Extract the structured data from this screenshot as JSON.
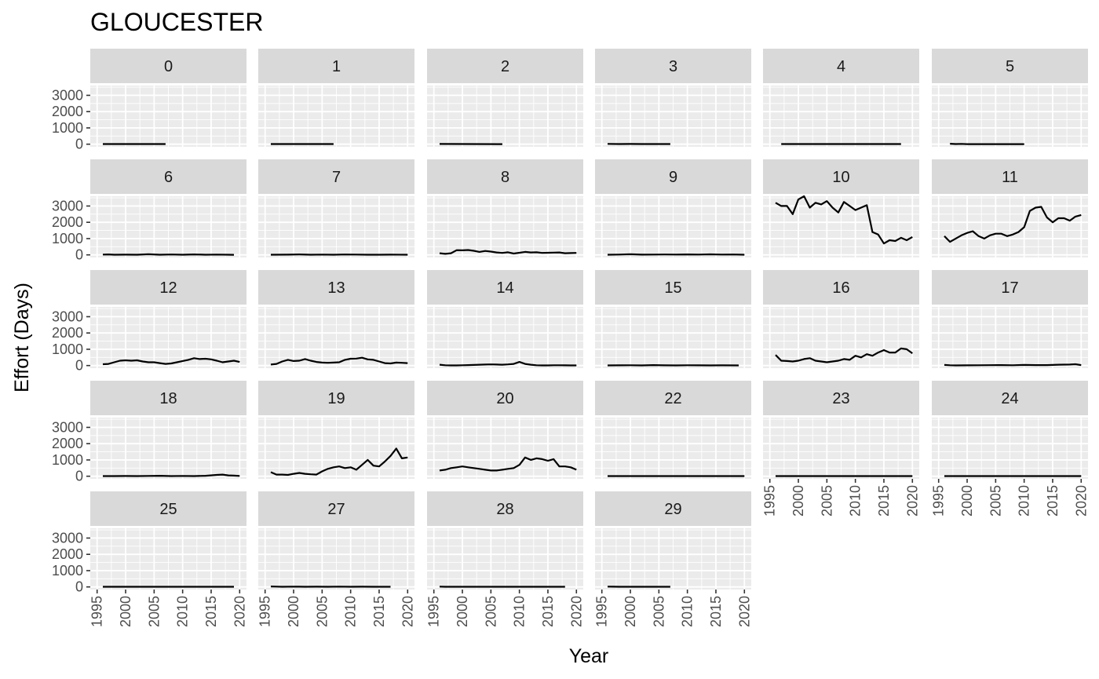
{
  "chart": {
    "title": "GLOUCESTER",
    "xlabel": "Year",
    "ylabel": "Effort (Days)"
  },
  "chart_data": {
    "type": "line",
    "title": "GLOUCESTER",
    "xlabel": "Year",
    "ylabel": "Effort (Days)",
    "facet_layout": "facet_wrap, 6 columns, free-x axis shown on bottom panel of each column",
    "xlim": [
      1995,
      2020
    ],
    "ylim": [
      0,
      3000
    ],
    "x_ticks": [
      1995,
      2000,
      2005,
      2010,
      2015,
      2020
    ],
    "y_ticks": [
      0,
      1000,
      2000,
      3000
    ],
    "grid": true,
    "panel_background": "#EBEBEB",
    "strip_background": "#D9D9D9",
    "line_color": "#000000",
    "facets": [
      {
        "label": "0",
        "x": [
          1996,
          2007
        ],
        "y": [
          10,
          10
        ]
      },
      {
        "label": "1",
        "x": [
          1996,
          2007
        ],
        "y": [
          10,
          10
        ]
      },
      {
        "label": "2",
        "x": [
          1996,
          2007
        ],
        "y": [
          15,
          5
        ]
      },
      {
        "label": "3",
        "x": [
          1996,
          1998,
          2000,
          2002,
          2004,
          2007
        ],
        "y": [
          20,
          10,
          15,
          10,
          10,
          10
        ]
      },
      {
        "label": "4",
        "x": [
          1997,
          2018
        ],
        "y": [
          10,
          10
        ]
      },
      {
        "label": "5",
        "x": [
          1997,
          1998,
          1999,
          2000,
          2010
        ],
        "y": [
          30,
          10,
          20,
          5,
          5
        ]
      },
      {
        "label": "6",
        "x": [
          1996,
          1997,
          1998,
          2000,
          2002,
          2004,
          2006,
          2008,
          2010,
          2012,
          2014,
          2016,
          2018,
          2019
        ],
        "y": [
          20,
          30,
          10,
          15,
          10,
          40,
          10,
          25,
          10,
          30,
          10,
          20,
          10,
          5
        ]
      },
      {
        "label": "7",
        "x": [
          1996,
          1999,
          2001,
          2003,
          2005,
          2007,
          2009,
          2011,
          2013,
          2015,
          2017,
          2020
        ],
        "y": [
          10,
          15,
          30,
          10,
          20,
          10,
          25,
          20,
          10,
          10,
          15,
          10
        ]
      },
      {
        "label": "8",
        "x": [
          1996,
          1997,
          1998,
          1999,
          2000,
          2001,
          2002,
          2003,
          2004,
          2005,
          2006,
          2007,
          2008,
          2009,
          2010,
          2011,
          2012,
          2013,
          2014,
          2015,
          2016,
          2017,
          2018,
          2019,
          2020
        ],
        "y": [
          100,
          60,
          100,
          290,
          280,
          300,
          250,
          180,
          240,
          200,
          150,
          120,
          160,
          80,
          130,
          180,
          150,
          160,
          120,
          130,
          140,
          150,
          100,
          110,
          120
        ]
      },
      {
        "label": "9",
        "x": [
          1996,
          1998,
          2000,
          2002,
          2004,
          2006,
          2008,
          2010,
          2012,
          2014,
          2016,
          2018,
          2020
        ],
        "y": [
          10,
          20,
          40,
          15,
          20,
          25,
          20,
          30,
          20,
          35,
          20,
          25,
          10
        ]
      },
      {
        "label": "10",
        "x": [
          1996,
          1997,
          1998,
          1999,
          2000,
          2001,
          2002,
          2003,
          2004,
          2005,
          2006,
          2007,
          2008,
          2009,
          2010,
          2011,
          2012,
          2013,
          2014,
          2015,
          2016,
          2017,
          2018,
          2019,
          2020
        ],
        "y": [
          3200,
          3000,
          3000,
          2500,
          3400,
          3600,
          2900,
          3200,
          3100,
          3300,
          2900,
          2600,
          3250,
          3000,
          2750,
          2900,
          3050,
          1400,
          1250,
          700,
          900,
          850,
          1050,
          900,
          1100
        ]
      },
      {
        "label": "11",
        "x": [
          1996,
          1997,
          1998,
          1999,
          2000,
          2001,
          2002,
          2003,
          2004,
          2005,
          2006,
          2007,
          2008,
          2009,
          2010,
          2011,
          2012,
          2013,
          2014,
          2015,
          2016,
          2017,
          2018,
          2019,
          2020
        ],
        "y": [
          1150,
          800,
          1000,
          1200,
          1350,
          1450,
          1150,
          1000,
          1200,
          1300,
          1300,
          1150,
          1250,
          1400,
          1700,
          2700,
          2900,
          2950,
          2300,
          2000,
          2250,
          2250,
          2100,
          2350,
          2450
        ]
      },
      {
        "label": "12",
        "x": [
          1996,
          1997,
          1998,
          1999,
          2000,
          2001,
          2002,
          2003,
          2004,
          2005,
          2006,
          2007,
          2008,
          2009,
          2010,
          2011,
          2012,
          2013,
          2014,
          2015,
          2016,
          2017,
          2018,
          2019,
          2020
        ],
        "y": [
          80,
          100,
          200,
          300,
          320,
          300,
          320,
          250,
          200,
          200,
          150,
          100,
          130,
          200,
          280,
          350,
          450,
          400,
          420,
          380,
          300,
          200,
          250,
          300,
          220
        ]
      },
      {
        "label": "13",
        "x": [
          1996,
          1997,
          1998,
          1999,
          2000,
          2001,
          2002,
          2003,
          2004,
          2005,
          2006,
          2007,
          2008,
          2009,
          2010,
          2011,
          2012,
          2013,
          2014,
          2015,
          2016,
          2017,
          2018,
          2019,
          2020
        ],
        "y": [
          60,
          100,
          250,
          350,
          280,
          300,
          400,
          300,
          220,
          180,
          170,
          180,
          200,
          350,
          420,
          430,
          480,
          380,
          350,
          250,
          150,
          130,
          180,
          170,
          150
        ]
      },
      {
        "label": "14",
        "x": [
          1996,
          1997,
          1998,
          1999,
          2000,
          2001,
          2002,
          2003,
          2004,
          2005,
          2006,
          2007,
          2008,
          2009,
          2010,
          2011,
          2012,
          2013,
          2014,
          2015,
          2016,
          2017,
          2018,
          2019,
          2020
        ],
        "y": [
          50,
          20,
          10,
          10,
          20,
          30,
          40,
          50,
          60,
          70,
          60,
          50,
          70,
          100,
          220,
          100,
          50,
          20,
          10,
          10,
          20,
          20,
          15,
          10,
          10
        ]
      },
      {
        "label": "15",
        "x": [
          1996,
          1998,
          2000,
          2002,
          2004,
          2006,
          2008,
          2010,
          2012,
          2014,
          2016,
          2019
        ],
        "y": [
          10,
          15,
          20,
          10,
          30,
          15,
          10,
          20,
          15,
          10,
          15,
          10
        ]
      },
      {
        "label": "16",
        "x": [
          1996,
          1997,
          1998,
          1999,
          2000,
          2001,
          2002,
          2003,
          2004,
          2005,
          2006,
          2007,
          2008,
          2009,
          2010,
          2011,
          2012,
          2013,
          2014,
          2015,
          2016,
          2017,
          2018,
          2019,
          2020
        ],
        "y": [
          650,
          300,
          280,
          250,
          300,
          400,
          450,
          300,
          250,
          200,
          250,
          300,
          400,
          350,
          600,
          500,
          700,
          600,
          800,
          950,
          800,
          800,
          1050,
          1000,
          750
        ]
      },
      {
        "label": "17",
        "x": [
          1996,
          1997,
          1998,
          2000,
          2002,
          2004,
          2006,
          2008,
          2010,
          2012,
          2014,
          2016,
          2018,
          2019,
          2020
        ],
        "y": [
          40,
          20,
          10,
          15,
          20,
          25,
          30,
          20,
          40,
          30,
          30,
          50,
          60,
          80,
          30
        ]
      },
      {
        "label": "18",
        "x": [
          1996,
          1998,
          2000,
          2002,
          2004,
          2006,
          2008,
          2010,
          2012,
          2014,
          2016,
          2017,
          2018,
          2019,
          2020
        ],
        "y": [
          10,
          10,
          15,
          10,
          20,
          30,
          10,
          20,
          10,
          30,
          80,
          100,
          50,
          40,
          20
        ]
      },
      {
        "label": "19",
        "x": [
          1996,
          1997,
          1998,
          1999,
          2000,
          2001,
          2002,
          2003,
          2004,
          2005,
          2006,
          2007,
          2008,
          2009,
          2010,
          2011,
          2012,
          2013,
          2014,
          2015,
          2016,
          2017,
          2018,
          2019,
          2020
        ],
        "y": [
          250,
          100,
          100,
          80,
          150,
          200,
          150,
          120,
          100,
          300,
          450,
          550,
          600,
          500,
          550,
          400,
          700,
          1000,
          650,
          600,
          900,
          1250,
          1700,
          1100,
          1150
        ]
      },
      {
        "label": "20",
        "x": [
          1996,
          1997,
          1998,
          1999,
          2000,
          2001,
          2002,
          2003,
          2004,
          2005,
          2006,
          2007,
          2008,
          2009,
          2010,
          2011,
          2012,
          2013,
          2014,
          2015,
          2016,
          2017,
          2018,
          2019,
          2020
        ],
        "y": [
          350,
          400,
          500,
          550,
          600,
          550,
          500,
          450,
          400,
          350,
          350,
          400,
          450,
          500,
          700,
          1150,
          1000,
          1100,
          1050,
          950,
          1050,
          600,
          600,
          550,
          400
        ]
      },
      {
        "label": "22",
        "x": [
          1996,
          1998,
          2000,
          2002,
          2004,
          2006,
          2008,
          2010,
          2012,
          2014,
          2016,
          2018,
          2020
        ],
        "y": [
          10,
          10,
          10,
          10,
          10,
          10,
          10,
          10,
          10,
          10,
          10,
          10,
          10
        ]
      },
      {
        "label": "23",
        "x": [
          1996,
          1998,
          2000,
          2002,
          2004,
          2006,
          2008,
          2010,
          2012,
          2014,
          2016,
          2018,
          2020
        ],
        "y": [
          10,
          10,
          10,
          10,
          10,
          10,
          10,
          10,
          10,
          10,
          10,
          10,
          10
        ]
      },
      {
        "label": "24",
        "x": [
          1996,
          1998,
          2000,
          2002,
          2004,
          2006,
          2008,
          2010,
          2012,
          2014,
          2016,
          2018,
          2020
        ],
        "y": [
          10,
          10,
          10,
          10,
          10,
          10,
          10,
          10,
          10,
          10,
          10,
          10,
          10
        ]
      },
      {
        "label": "25",
        "x": [
          1996,
          1998,
          2000,
          2002,
          2004,
          2006,
          2008,
          2010,
          2012,
          2014,
          2016,
          2018,
          2019
        ],
        "y": [
          10,
          10,
          10,
          10,
          10,
          10,
          10,
          10,
          10,
          10,
          10,
          10,
          10
        ]
      },
      {
        "label": "27",
        "x": [
          1996,
          1997,
          1998,
          2000,
          2002,
          2004,
          2006,
          2008,
          2010,
          2012,
          2014,
          2016,
          2017
        ],
        "y": [
          30,
          20,
          10,
          20,
          10,
          15,
          10,
          20,
          10,
          15,
          10,
          10,
          10
        ]
      },
      {
        "label": "28",
        "x": [
          1996,
          1997,
          1998,
          2000,
          2002,
          2004,
          2006,
          2008,
          2010,
          2012,
          2014,
          2016,
          2018
        ],
        "y": [
          20,
          10,
          10,
          10,
          10,
          10,
          10,
          10,
          10,
          10,
          10,
          10,
          10
        ]
      },
      {
        "label": "29",
        "x": [
          1996,
          1997,
          1998,
          2000,
          2002,
          2004,
          2006,
          2007
        ],
        "y": [
          20,
          15,
          10,
          10,
          10,
          10,
          10,
          10
        ]
      }
    ]
  }
}
